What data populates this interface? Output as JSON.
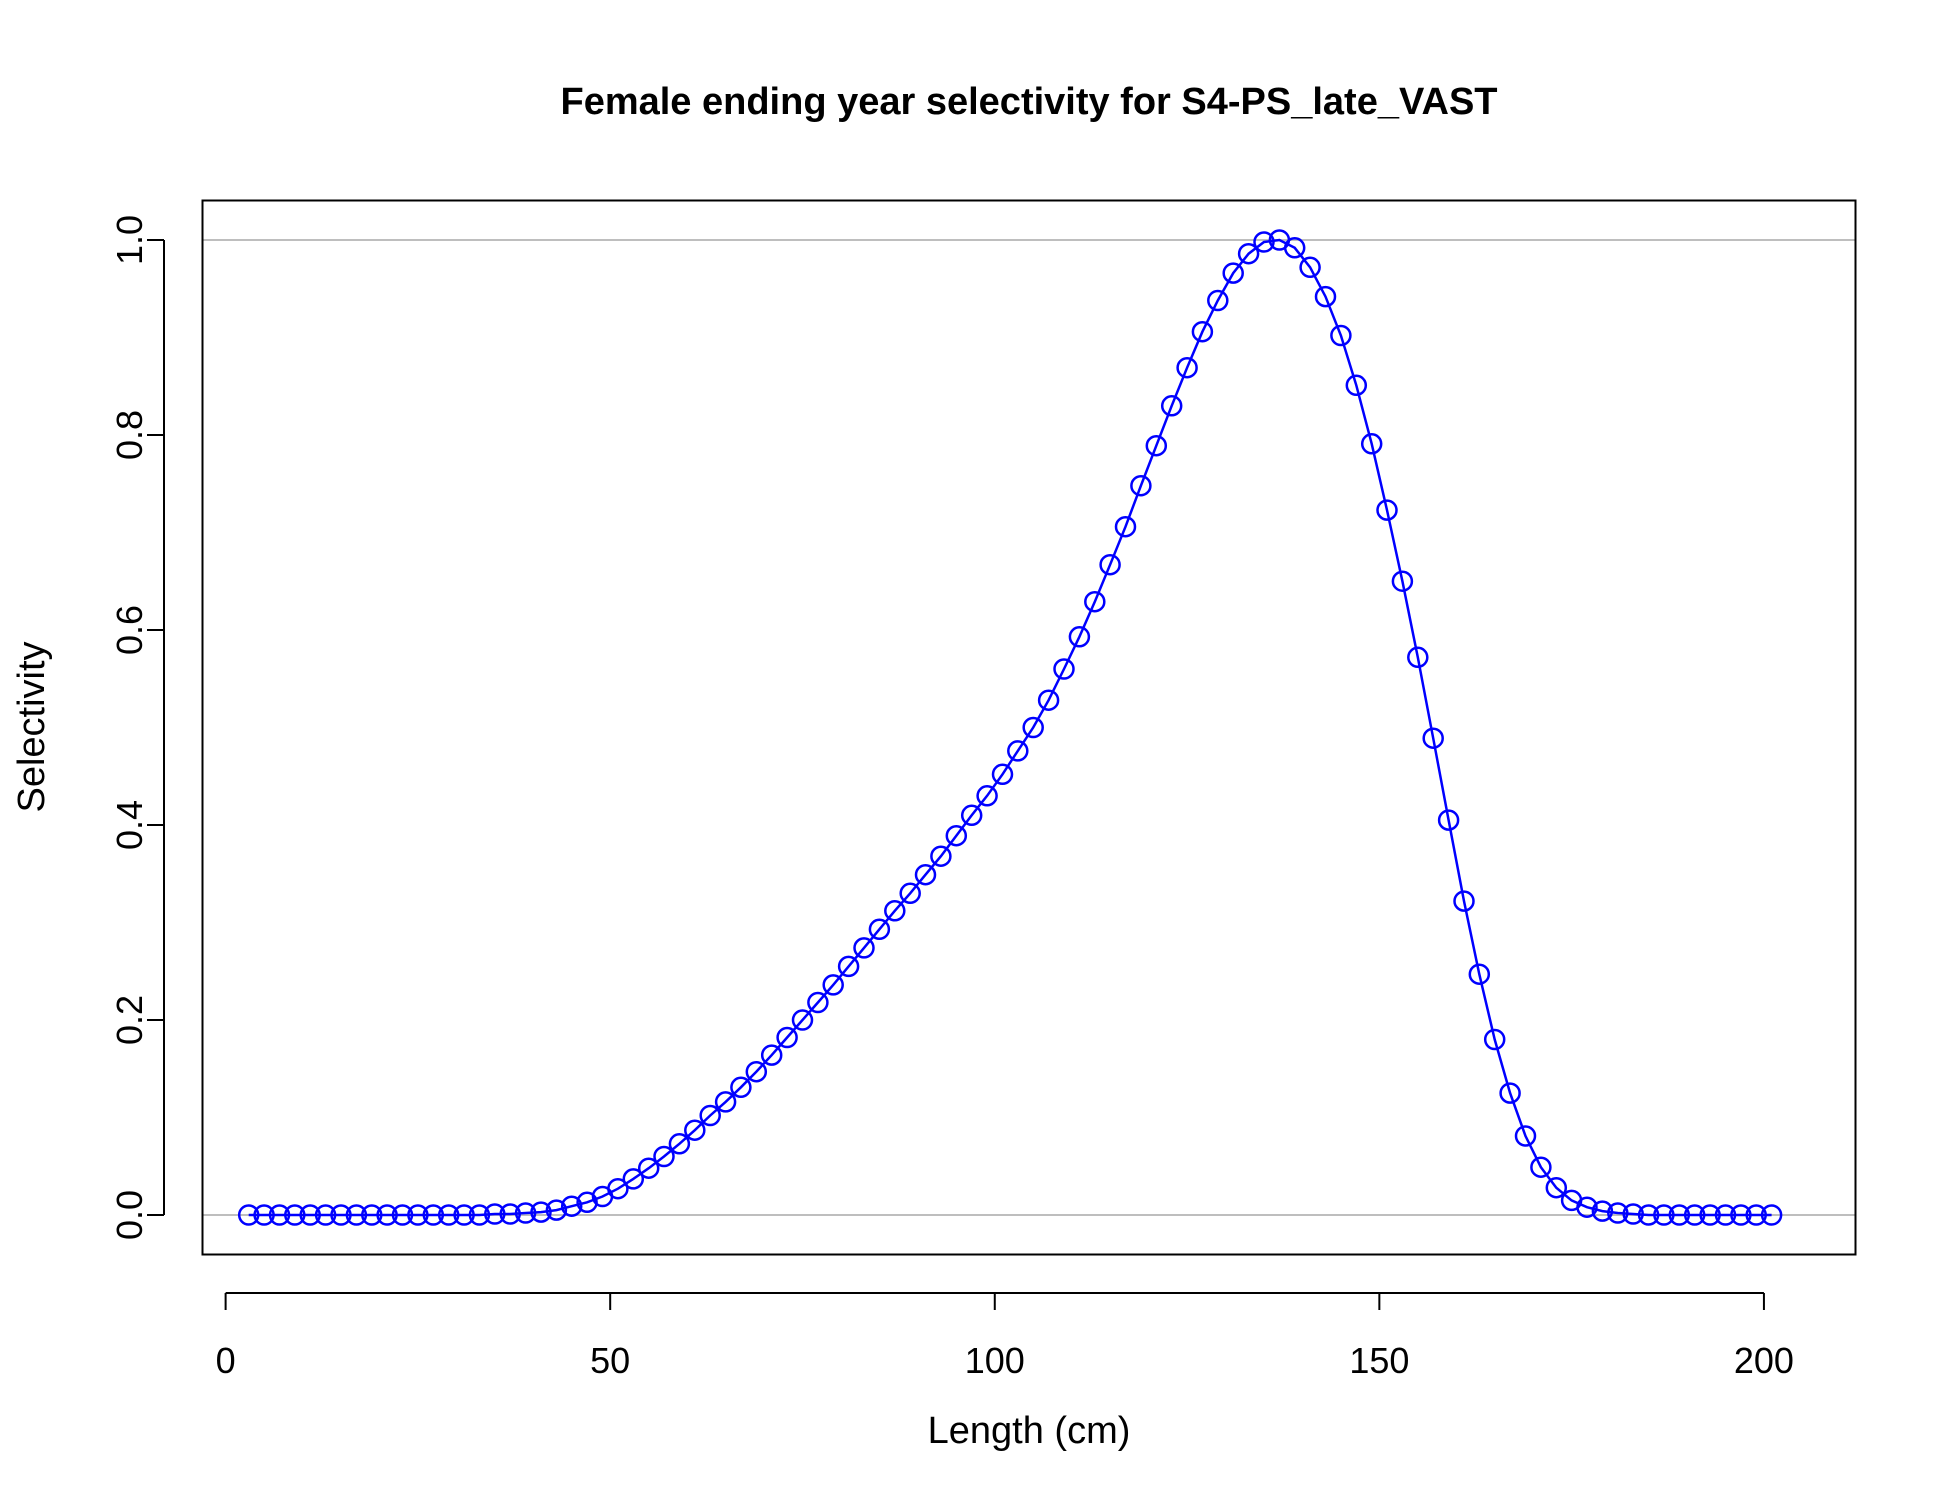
{
  "chart_data": {
    "type": "line",
    "title": "Female ending year selectivity for S4-PS_late_VAST",
    "xlabel": "Length (cm)",
    "ylabel": "Selectivity",
    "xlim": [
      -2.94,
      211.84
    ],
    "ylim": [
      -0.04,
      1.04
    ],
    "x_ticks": [
      0,
      50,
      100,
      150,
      200
    ],
    "y_ticks": [
      0.0,
      0.2,
      0.4,
      0.6,
      0.8,
      1.0
    ],
    "x_tick_labels": [
      "0",
      "50",
      "100",
      "150",
      "200"
    ],
    "y_tick_labels": [
      "0.0",
      "0.2",
      "0.4",
      "0.6",
      "0.8",
      "1.0"
    ],
    "reference_lines_y": [
      0,
      1
    ],
    "grid": false,
    "marker": "open-circle",
    "colors": {
      "series": "#0000ff",
      "reference": "#bebebe",
      "axis": "#000000"
    },
    "series": [
      {
        "x": [
          3,
          5,
          7,
          9,
          11,
          13,
          15,
          17,
          19,
          21,
          23,
          25,
          27,
          29,
          31,
          33,
          35,
          37,
          39,
          41,
          43,
          45,
          47,
          49,
          51,
          53,
          55,
          57,
          59,
          61,
          63,
          65,
          67,
          69,
          71,
          73,
          75,
          77,
          79,
          81,
          83,
          85,
          87,
          89,
          91,
          93,
          95,
          97,
          99,
          101,
          103,
          105,
          107,
          109,
          111,
          113,
          115,
          117,
          119,
          121,
          123,
          125,
          127,
          129,
          131,
          133,
          135,
          137,
          139,
          141,
          143,
          145,
          147,
          149,
          151,
          153,
          155,
          157,
          159,
          161,
          163,
          165,
          167,
          169,
          171,
          173,
          175,
          177,
          179,
          181,
          183,
          185,
          187,
          189,
          191,
          193,
          195,
          197,
          199,
          201
        ],
        "y": [
          0,
          0,
          0,
          0,
          0,
          0,
          0,
          0,
          0,
          0,
          0,
          0,
          0,
          0,
          0,
          0,
          0.001,
          0.001,
          0.002,
          0.003,
          0.005,
          0.009,
          0.013,
          0.019,
          0.027,
          0.037,
          0.048,
          0.06,
          0.073,
          0.087,
          0.102,
          0.116,
          0.131,
          0.147,
          0.164,
          0.182,
          0.2,
          0.218,
          0.236,
          0.255,
          0.274,
          0.293,
          0.312,
          0.33,
          0.349,
          0.368,
          0.389,
          0.41,
          0.43,
          0.452,
          0.476,
          0.5,
          0.528,
          0.56,
          0.593,
          0.629,
          0.667,
          0.706,
          0.748,
          0.789,
          0.83,
          0.869,
          0.906,
          0.938,
          0.966,
          0.986,
          0.998,
          1.0,
          0.992,
          0.972,
          0.942,
          0.902,
          0.851,
          0.791,
          0.723,
          0.65,
          0.572,
          0.489,
          0.405,
          0.322,
          0.247,
          0.18,
          0.125,
          0.081,
          0.049,
          0.028,
          0.015,
          0.008,
          0.004,
          0.002,
          0.001,
          0,
          0,
          0,
          0,
          0,
          0,
          0,
          0,
          0
        ]
      }
    ]
  }
}
